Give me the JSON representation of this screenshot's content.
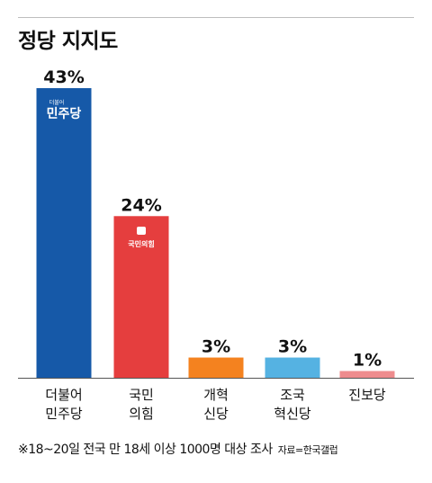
{
  "title": "정당 지지도",
  "footnote": "※18~20일 전국 만 18세 이상 1000명 대상 조사",
  "source": "자료=한국갤럽",
  "chart_data": {
    "type": "bar",
    "categories": [
      [
        "더불어",
        "민주당"
      ],
      [
        "국민",
        "의힘"
      ],
      [
        "개혁",
        "신당"
      ],
      [
        "조국",
        "혁신당"
      ],
      [
        "진보당"
      ]
    ],
    "values": [
      43,
      24,
      3,
      3,
      1
    ],
    "value_labels": [
      "43%",
      "24%",
      "3%",
      "3%",
      "1%"
    ],
    "colors": [
      "#1659a8",
      "#e53e3e",
      "#f4821f",
      "#55b2e2",
      "#ee8c8e"
    ],
    "unit": "%",
    "ylim": [
      0,
      43
    ],
    "logos": [
      {
        "small": "더불어",
        "big": "민주당"
      },
      {
        "text": "국민의힘"
      }
    ]
  }
}
